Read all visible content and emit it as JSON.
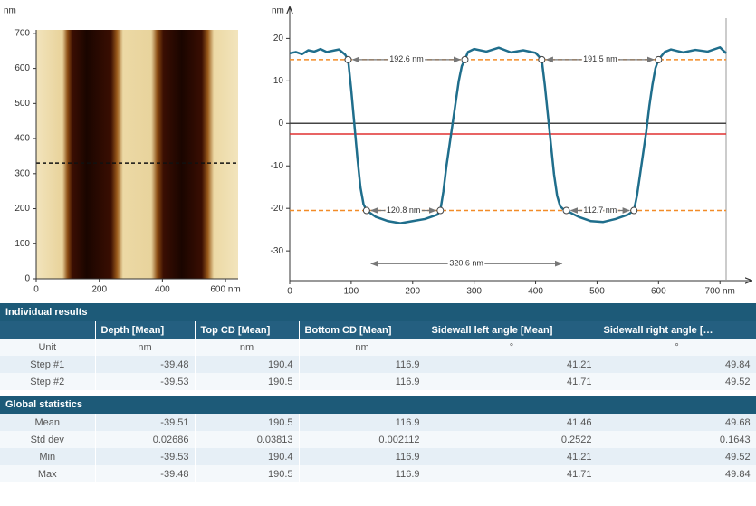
{
  "chart_data": [
    {
      "type": "image",
      "y_unit": "nm",
      "xlim": [
        0,
        640
      ],
      "ylim": [
        0,
        710
      ],
      "xticks": [
        0,
        200,
        400,
        {
          "value": 600,
          "label": "600 nm"
        }
      ],
      "yticks": [
        0,
        100,
        200,
        300,
        400,
        500,
        600,
        700
      ],
      "cut_line_y": 330,
      "cut_line_color": "#111111"
    },
    {
      "type": "line",
      "y_unit": "nm",
      "xlim": [
        0,
        710
      ],
      "ylim": [
        -37,
        22
      ],
      "xticks": [
        0,
        100,
        200,
        300,
        400,
        500,
        600,
        {
          "value": 700,
          "label": "700 nm"
        }
      ],
      "yticks": [
        -30,
        -20,
        -10,
        0,
        10,
        20
      ],
      "x": [
        0,
        10,
        20,
        30,
        40,
        50,
        60,
        70,
        80,
        90,
        95,
        100,
        105,
        110,
        115,
        120,
        125,
        140,
        160,
        180,
        200,
        220,
        240,
        245,
        250,
        255,
        260,
        265,
        270,
        275,
        280,
        285,
        290,
        300,
        320,
        340,
        360,
        380,
        400,
        410,
        415,
        420,
        425,
        430,
        435,
        440,
        445,
        450,
        470,
        490,
        510,
        530,
        550,
        560,
        565,
        570,
        575,
        580,
        585,
        590,
        595,
        600,
        610,
        620,
        640,
        660,
        680,
        700,
        710
      ],
      "series": [
        {
          "color": "#1f6e8c",
          "values": [
            16.5,
            16.8,
            16.3,
            17.2,
            16.9,
            17.5,
            16.8,
            17.1,
            17.4,
            16.2,
            15,
            8,
            0,
            -8,
            -15,
            -19,
            -20.5,
            -22,
            -23,
            -23.5,
            -23,
            -22.5,
            -21.5,
            -20.5,
            -16,
            -10,
            -5,
            0,
            5,
            10,
            13.5,
            15,
            16.8,
            17.5,
            16.9,
            17.8,
            16.7,
            17.2,
            16.6,
            15,
            9,
            2,
            -5,
            -12,
            -17,
            -19.5,
            -20.2,
            -20.5,
            -22,
            -23,
            -23.2,
            -22.5,
            -21.5,
            -20.5,
            -17,
            -12,
            -7,
            -2,
            4,
            9,
            13,
            15,
            16.8,
            17.4,
            16.7,
            17.3,
            16.9,
            17.9,
            16.5
          ]
        }
      ],
      "reference_lines": [
        {
          "y": 15,
          "color": "#f28c28",
          "style": "dashed"
        },
        {
          "y": -20.5,
          "color": "#f28c28",
          "style": "dashed"
        },
        {
          "y": 0,
          "color": "#444444",
          "style": "solid"
        },
        {
          "y": -2.5,
          "color": "#e03030",
          "style": "solid"
        }
      ],
      "points": {
        "x": [
          95,
          125,
          245,
          285,
          410,
          450,
          560,
          600
        ],
        "y": [
          15,
          -20.5,
          -20.5,
          15,
          15,
          -20.5,
          -20.5,
          15
        ]
      },
      "measurements": [
        {
          "label": "192.6 nm",
          "x": [
            95,
            285
          ],
          "y": 15
        },
        {
          "label": "191.5 nm",
          "x": [
            410,
            600
          ],
          "y": 15
        },
        {
          "label": "120.8 nm",
          "x": [
            125,
            245
          ],
          "y": -20.5
        },
        {
          "label": "112.7 nm",
          "x": [
            450,
            560
          ],
          "y": -20.5
        },
        {
          "label": "320.6 nm",
          "x": [
            125,
            450
          ],
          "y": -33
        }
      ]
    }
  ],
  "individual_results": {
    "title": "Individual results",
    "columns": [
      "Depth [Mean]",
      "Top CD [Mean]",
      "Bottom CD [Mean]",
      "Sidewall left angle [Mean]",
      "Sidewall right angle […"
    ],
    "rows": [
      {
        "label": "Unit",
        "cells": [
          "nm",
          "nm",
          "nm",
          "°",
          "°"
        ]
      },
      {
        "label": "Step #1",
        "cells": [
          -39.48,
          190.4,
          116.9,
          41.21,
          49.84
        ]
      },
      {
        "label": "Step #2",
        "cells": [
          -39.53,
          190.5,
          116.9,
          41.71,
          49.52
        ]
      }
    ]
  },
  "global_statistics": {
    "title": "Global statistics",
    "rows": [
      {
        "label": "Mean",
        "cells": [
          -39.51,
          190.5,
          116.9,
          41.46,
          49.68
        ]
      },
      {
        "label": "Std dev",
        "cells": [
          0.02686,
          0.03813,
          0.002112,
          0.2522,
          0.1643
        ]
      },
      {
        "label": "Min",
        "cells": [
          -39.53,
          190.4,
          116.9,
          41.21,
          49.52
        ]
      },
      {
        "label": "Max",
        "cells": [
          -39.48,
          190.5,
          116.9,
          41.71,
          49.84
        ]
      }
    ]
  }
}
